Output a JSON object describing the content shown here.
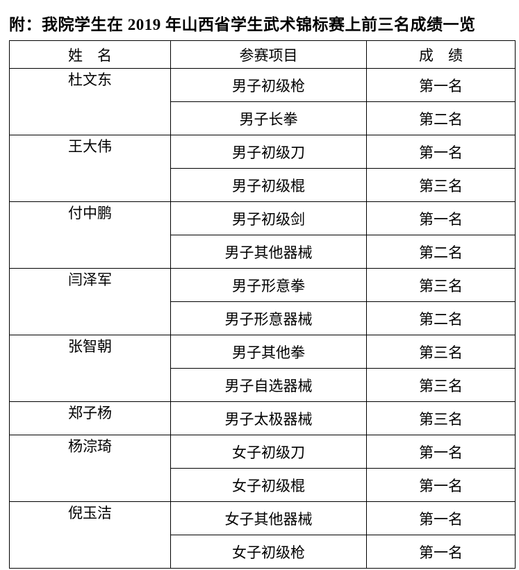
{
  "title": "附：我院学生在 2019 年山西省学生武术锦标赛上前三名成绩一览",
  "table": {
    "headers": [
      "姓　名",
      "参赛项目",
      "成　绩"
    ],
    "groups": [
      {
        "name": "杜文东",
        "entries": [
          {
            "event": "男子初级枪",
            "result": "第一名"
          },
          {
            "event": "男子长拳",
            "result": "第二名"
          }
        ]
      },
      {
        "name": "王大伟",
        "entries": [
          {
            "event": "男子初级刀",
            "result": "第一名"
          },
          {
            "event": "男子初级棍",
            "result": "第三名"
          }
        ]
      },
      {
        "name": "付中鹏",
        "entries": [
          {
            "event": "男子初级剑",
            "result": "第一名"
          },
          {
            "event": "男子其他器械",
            "result": "第二名"
          }
        ]
      },
      {
        "name": "闫泽军",
        "entries": [
          {
            "event": "男子形意拳",
            "result": "第三名"
          },
          {
            "event": "男子形意器械",
            "result": "第二名"
          }
        ]
      },
      {
        "name": "张智朝",
        "entries": [
          {
            "event": "男子其他拳",
            "result": "第三名"
          },
          {
            "event": "男子自选器械",
            "result": "第三名"
          }
        ]
      },
      {
        "name": "郑子杨",
        "entries": [
          {
            "event": "男子太极器械",
            "result": "第三名"
          }
        ]
      },
      {
        "name": "杨淙琦",
        "entries": [
          {
            "event": "女子初级刀",
            "result": "第一名"
          },
          {
            "event": "女子初级棍",
            "result": "第一名"
          }
        ]
      },
      {
        "name": "倪玉洁",
        "entries": [
          {
            "event": "女子其他器械",
            "result": "第一名"
          },
          {
            "event": "女子初级枪",
            "result": "第一名"
          }
        ]
      }
    ]
  }
}
